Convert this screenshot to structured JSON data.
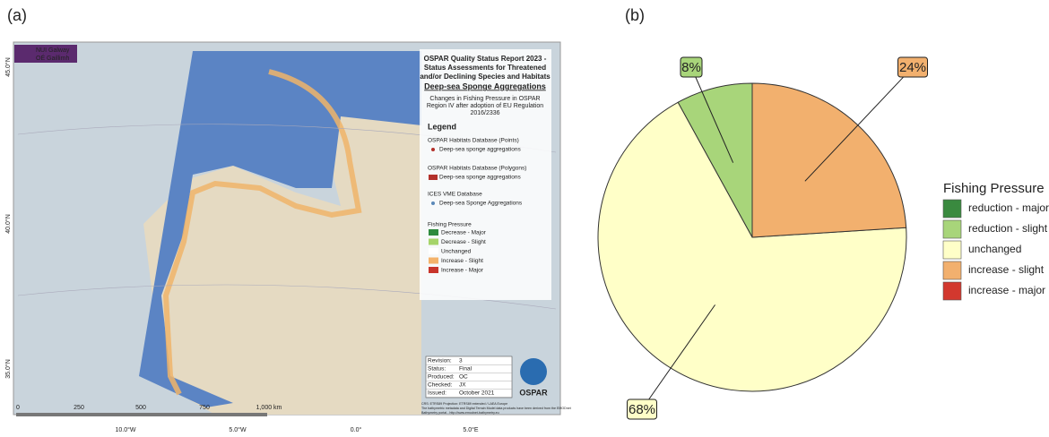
{
  "map": {
    "panel_label": "(a)",
    "logo": [
      "NUI Galway",
      "OÉ Gaillimh"
    ],
    "title": [
      "OSPAR Quality Status Report 2023 -",
      "Status Assessments for Threatened",
      "and/or Declining Species and Habitats"
    ],
    "subject": "Deep-sea Sponge Aggregations",
    "description": [
      "Changes in Fishing Pressure in OSPAR",
      "Region IV after adoption of EU Regulation",
      "2016/2336"
    ],
    "legend_title": "Legend",
    "legend_groups": [
      {
        "title": "OSPAR Habitats Database (Points)",
        "item": "Deep-sea sponge aggregations"
      },
      {
        "title": "OSPAR Habitats Database (Polygons)",
        "item": "Deep-sea sponge aggregations"
      },
      {
        "title": "ICES VME Database",
        "item": "Deep-sea Sponge Aggregations"
      }
    ],
    "fishing_title": "Fishing Pressure",
    "fishing_items": [
      "Decrease - Major",
      "Decrease - Slight",
      "Unchanged",
      "Increase - Slight",
      "Increase - Major"
    ],
    "fishing_colors": [
      "#2e8b3e",
      "#a6d46a",
      "#ffffff",
      "#f4b36b",
      "#c8352b"
    ],
    "info": [
      [
        "Revision:",
        "3"
      ],
      [
        "Status:",
        "Final"
      ],
      [
        "Produced:",
        "OC"
      ],
      [
        "Checked:",
        "JX"
      ],
      [
        "Issued:",
        "October 2021"
      ]
    ],
    "brand": "OSPAR",
    "scale": [
      "0",
      "250",
      "500",
      "750",
      "1,000 km"
    ],
    "lon_labels": [
      "10.0°W",
      "5.0°W",
      "0.0°",
      "5.0°E"
    ],
    "lat_labels": [
      "45.0°N",
      "40.0°N",
      "35.0°N"
    ],
    "credits": [
      "CRS: ETRS89 Projection: ETRS89 extended / LAEA Europe",
      "The bathymetric metadata and Digital Terrain Model data products have been derived from the EMODnet",
      "Bathymetry portal - http://www.emodnet-bathymetry.eu"
    ]
  },
  "chart_data": {
    "type": "pie",
    "panel_label": "(b)",
    "legend_title": "Fishing Pressure",
    "categories": [
      "reduction - major",
      "reduction - slight",
      "unchanged",
      "increase - slight",
      "increase - major"
    ],
    "values": [
      0,
      8,
      68,
      24,
      0
    ],
    "value_labels": [
      null,
      "8%",
      "68%",
      "24%",
      null
    ],
    "colors": [
      "#3a8a3f",
      "#a8d57a",
      "#ffffc8",
      "#f2b06e",
      "#d2382e"
    ]
  }
}
